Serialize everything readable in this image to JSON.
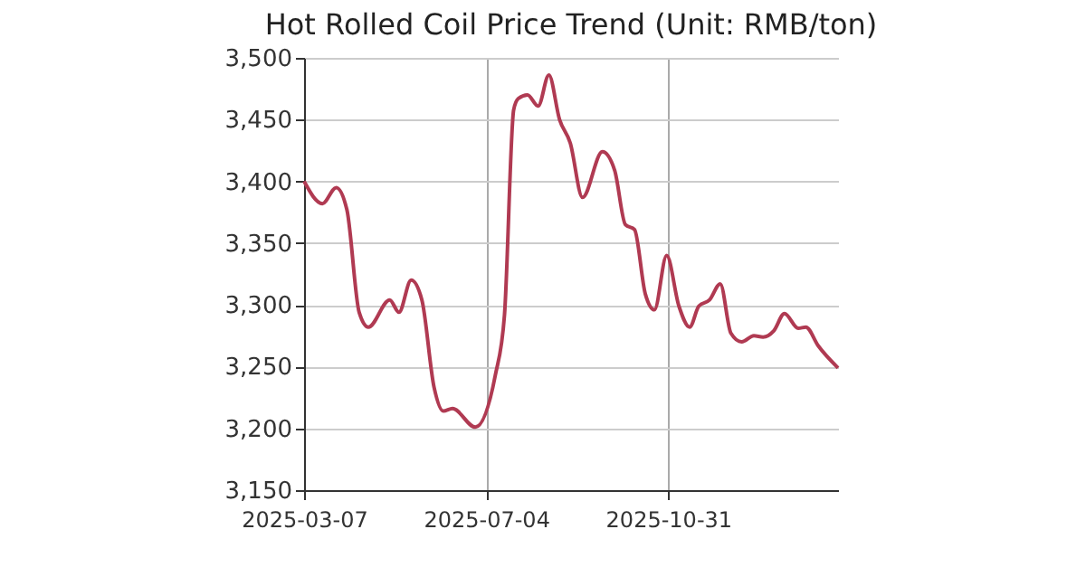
{
  "chart_data": {
    "type": "line",
    "title": "Hot Rolled Coil Price Trend (Unit: RMB/ton)",
    "x": [
      "2025-03-07",
      "2025-03-19",
      "2025-03-28",
      "2025-04-04",
      "2025-04-12",
      "2025-04-18",
      "2025-05-02",
      "2025-05-08",
      "2025-05-16",
      "2025-05-23",
      "2025-05-31",
      "2025-06-06",
      "2025-06-12",
      "2025-06-27",
      "2025-07-10",
      "2025-07-16",
      "2025-07-22",
      "2025-07-25",
      "2025-07-31",
      "2025-08-07",
      "2025-08-14",
      "2025-08-21",
      "2025-08-28",
      "2025-09-05",
      "2025-09-18",
      "2025-09-26",
      "2025-10-03",
      "2025-10-09",
      "2025-10-16",
      "2025-10-22",
      "2025-10-30",
      "2025-11-07",
      "2025-11-14",
      "2025-11-20",
      "2025-11-27",
      "2025-12-04",
      "2025-12-11",
      "2025-12-18",
      "2025-12-26",
      "2026-01-01",
      "2026-01-08",
      "2026-01-15",
      "2026-01-24",
      "2026-01-29",
      "2026-02-06",
      "2026-02-19"
    ],
    "series": [
      {
        "color": "#b03a52",
        "values": [
          3400,
          3382,
          3395,
          3377,
          3294,
          3282,
          3304,
          3294,
          3320,
          3304,
          3233,
          3214,
          3216,
          3201,
          3243,
          3292,
          3458,
          3467,
          3470,
          3461,
          3486,
          3450,
          3431,
          3387,
          3424,
          3409,
          3365,
          3361,
          3309,
          3296,
          3340,
          3299,
          3282,
          3299,
          3304,
          3317,
          3277,
          3270,
          3275,
          3274,
          3279,
          3293,
          3281,
          3282,
          3267,
          3249
        ]
      }
    ],
    "xlim": [
      "2025-03-07",
      "2026-02-19"
    ],
    "xticks": [
      "2025-03-07",
      "2025-07-04",
      "2025-10-31"
    ],
    "ylim": [
      3150,
      3500
    ],
    "yticks": [
      {
        "value": 3150,
        "label": "3,150"
      },
      {
        "value": 3200,
        "label": "3,200"
      },
      {
        "value": 3250,
        "label": "3,250"
      },
      {
        "value": 3300,
        "label": "3,300"
      },
      {
        "value": 3350,
        "label": "3,350"
      },
      {
        "value": 3400,
        "label": "3,400"
      },
      {
        "value": 3450,
        "label": "3,450"
      },
      {
        "value": 3500,
        "label": "3,500"
      }
    ],
    "grid": true,
    "legend": false,
    "marker": "none",
    "line_style": "solid"
  }
}
